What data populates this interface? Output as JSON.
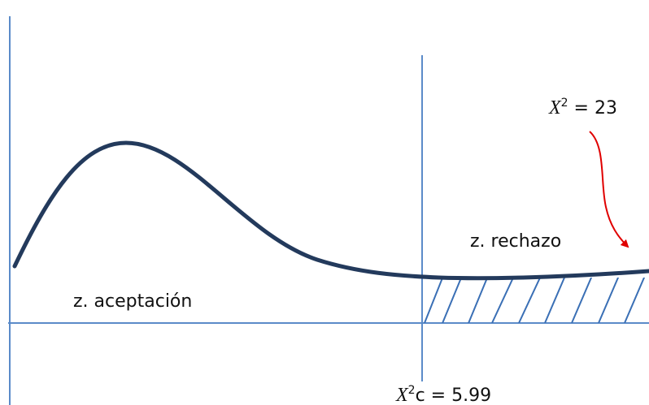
{
  "labels": {
    "acceptance": "z. aceptación",
    "rejection": "z. rechazo",
    "observed": {
      "symbol": "X",
      "sup": "2",
      "rest": " = 23"
    },
    "critical": {
      "symbol": "X",
      "sup": "2",
      "rest": "c = 5.99"
    }
  }
}
